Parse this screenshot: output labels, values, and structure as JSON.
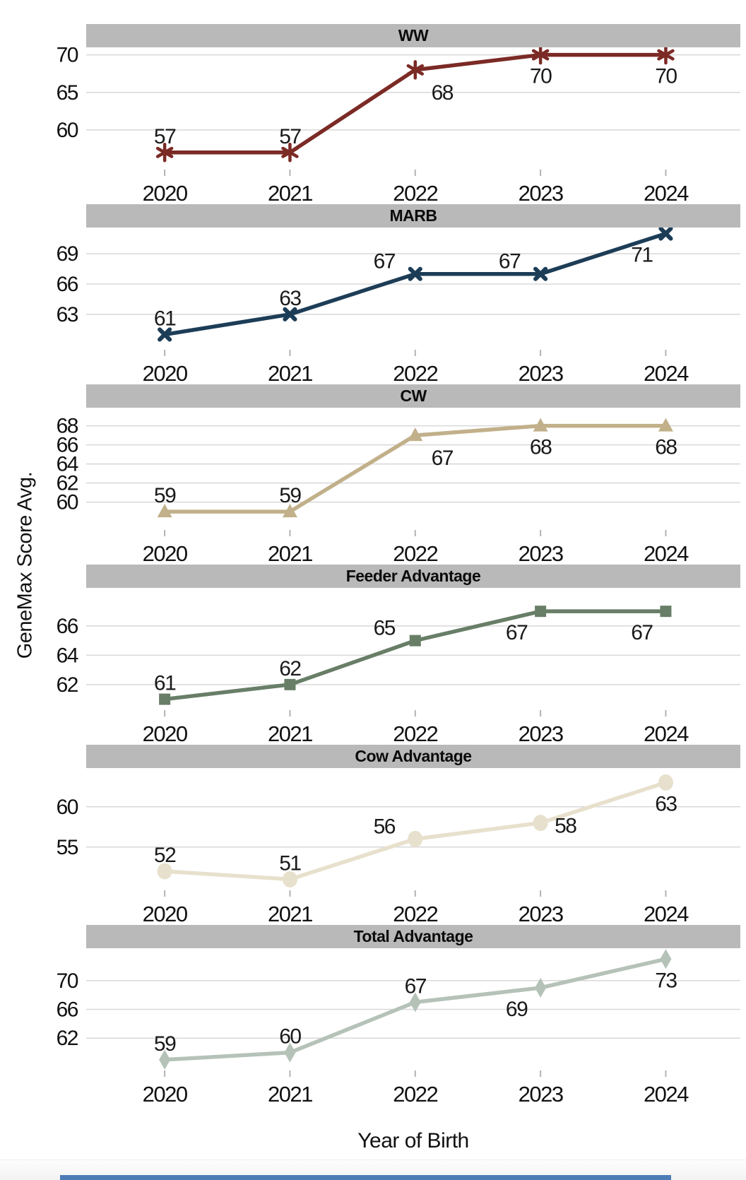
{
  "y_axis_label": "GeneMax Score Avg.",
  "x_axis_label": "Year of Birth",
  "colors": {
    "panel_header_bg": "#b9b9b9",
    "gridline": "#d8d8d8",
    "axis_tick": "#b3b3b3",
    "label_text": "#1a1a1a",
    "background": "#ffffff",
    "footer_bar": "#4d7cb7"
  },
  "chart_data": {
    "type": "line",
    "faceted": true,
    "categories": [
      "2020",
      "2021",
      "2022",
      "2023",
      "2024"
    ],
    "xlabel": "Year of Birth",
    "ylabel": "GeneMax Score Avg.",
    "legend": "none",
    "grid": "horizontal",
    "panels": [
      {
        "title": "WW",
        "color": "#7b2a25",
        "marker": "asterisk",
        "values": [
          57,
          57,
          68,
          70,
          70
        ],
        "yticks": [
          70,
          65,
          60
        ],
        "ylim": [
          55.0,
          71.0
        ],
        "label_pos": [
          "above",
          "above",
          "below-right",
          "below",
          "below"
        ]
      },
      {
        "title": "MARB",
        "color": "#1d3d57",
        "marker": "x",
        "values": [
          61,
          63,
          67,
          67,
          71
        ],
        "yticks": [
          69,
          66,
          63
        ],
        "ylim": [
          59.7,
          71.6
        ],
        "label_pos": [
          "above",
          "above",
          "above-left",
          "above-left",
          "below-left"
        ]
      },
      {
        "title": "CW",
        "color": "#c1b08a",
        "marker": "triangle",
        "values": [
          59,
          59,
          67,
          68,
          68
        ],
        "yticks": [
          68,
          66,
          64,
          62,
          60
        ],
        "ylim": [
          57.3,
          69.9
        ],
        "label_pos": [
          "above",
          "above",
          "below-right",
          "below",
          "below"
        ]
      },
      {
        "title": "Feeder Advantage",
        "color": "#687e67",
        "marker": "square",
        "values": [
          61,
          62,
          65,
          67,
          67
        ],
        "yticks": [
          66,
          64,
          62
        ],
        "ylim": [
          60.4,
          68.6
        ],
        "label_pos": [
          "above",
          "above",
          "above-left",
          "below-left",
          "below-left"
        ]
      },
      {
        "title": "Cow Advantage",
        "color": "#e7e0cc",
        "marker": "circle",
        "values": [
          52,
          51,
          56,
          58,
          63
        ],
        "yticks": [
          60,
          55
        ],
        "ylim": [
          49.9,
          64.8
        ],
        "label_pos": [
          "above",
          "above",
          "above-left",
          "right",
          "below"
        ]
      },
      {
        "title": "Total Advantage",
        "color": "#b5c2b8",
        "marker": "diamond",
        "values": [
          59,
          60,
          67,
          69,
          73
        ],
        "yticks": [
          70,
          66,
          62
        ],
        "ylim": [
          57.8,
          74.5
        ],
        "label_pos": [
          "above",
          "above",
          "above",
          "below-left",
          "below"
        ]
      }
    ]
  }
}
